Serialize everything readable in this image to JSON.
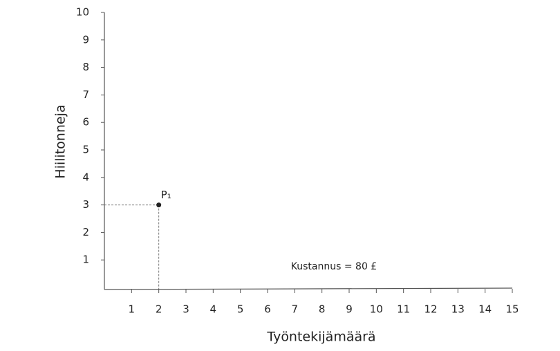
{
  "chart_data": {
    "type": "scatter",
    "x_label": "Työntekijämäärä",
    "y_label": "Hiilitonneja",
    "x": [
      2
    ],
    "values": [
      3
    ],
    "point_labels": [
      "P₁"
    ],
    "color": "#222",
    "annotation": "Kustannus = 80 £",
    "xlim": [
      0,
      15
    ],
    "xticks": [
      1,
      2,
      3,
      4,
      5,
      6,
      7,
      8,
      9,
      10,
      11,
      12,
      13,
      14,
      15
    ],
    "ylim": [
      0,
      10
    ],
    "yticks": [
      1,
      2,
      3,
      4,
      5,
      6,
      7,
      8,
      9,
      10
    ],
    "grid": false,
    "guides": true
  }
}
